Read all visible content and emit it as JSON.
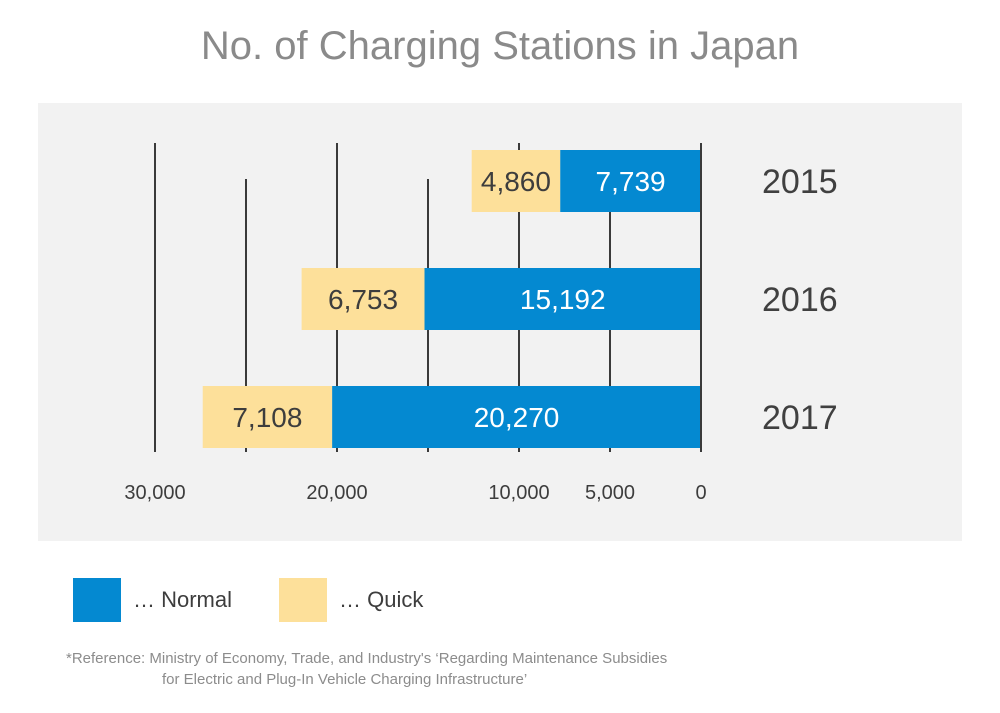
{
  "title": "No. of Charging Stations in Japan",
  "chart_data": {
    "type": "bar",
    "orientation": "horizontal",
    "stacked": true,
    "direction": "right-to-left",
    "categories": [
      "2015",
      "2016",
      "2017"
    ],
    "series": [
      {
        "name": "Normal",
        "values": [
          7739,
          15192,
          20270
        ],
        "labels": [
          "7,739",
          "15,192",
          "20,270"
        ],
        "color": "#0489d1"
      },
      {
        "name": "Quick",
        "values": [
          4860,
          6753,
          7108
        ],
        "labels": [
          "4,860",
          "6,753",
          "7,108"
        ],
        "color": "#fde09a"
      }
    ],
    "x_ticks": [
      30000,
      20000,
      10000,
      5000,
      0
    ],
    "x_tick_labels": [
      "30,000",
      "20,000",
      "10,000",
      "5,000",
      "0"
    ],
    "xlim": [
      0,
      30000
    ],
    "grid": true
  },
  "legend": {
    "items": [
      {
        "label": "… Normal",
        "color": "#0489d1"
      },
      {
        "label": "… Quick",
        "color": "#fde09a"
      }
    ]
  },
  "reference": {
    "line1": "*Reference: Ministry of Economy, Trade, and Industry's ‘Regarding Maintenance Subsidies",
    "line2": "for Electric and Plug-In Vehicle Charging Infrastructure’"
  }
}
